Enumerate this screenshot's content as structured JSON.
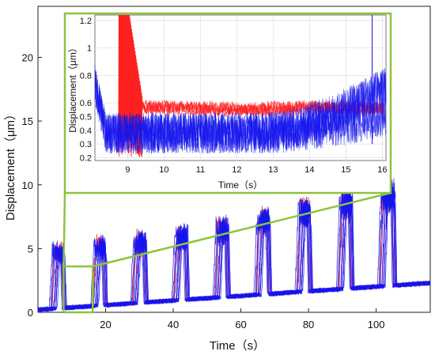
{
  "chart_data": [
    {
      "type": "line",
      "name": "main",
      "xlabel": "Time（s）",
      "ylabel": "Displacement（μm）",
      "xlim": [
        0,
        116
      ],
      "ylim": [
        0,
        24
      ],
      "xticks": [
        20,
        40,
        60,
        80,
        100
      ],
      "yticks": [
        0,
        5,
        10,
        15,
        20
      ],
      "grid": false,
      "pulses": [
        {
          "start": 4.5,
          "end": 7.8,
          "peak": 4.8
        },
        {
          "start": 16.8,
          "end": 20.0,
          "peak": 5.2
        },
        {
          "start": 28.5,
          "end": 32.0,
          "peak": 5.6
        },
        {
          "start": 40.7,
          "end": 44.2,
          "peak": 6.0
        },
        {
          "start": 52.9,
          "end": 56.3,
          "peak": 6.6
        },
        {
          "start": 65.0,
          "end": 68.5,
          "peak": 7.3
        },
        {
          "start": 77.2,
          "end": 80.6,
          "peak": 8.0
        },
        {
          "start": 89.4,
          "end": 92.9,
          "peak": 8.8
        },
        {
          "start": 101.6,
          "end": 105.5,
          "peak": 9.4
        }
      ],
      "baseline_start": 0.2,
      "baseline_end": 2.3,
      "series_colors": [
        "#ff2020",
        "#1515ee"
      ]
    },
    {
      "type": "line",
      "name": "inset",
      "xlabel": "Time（s）",
      "ylabel": "Displacement（μm）",
      "xlim": [
        8.1,
        16.1
      ],
      "ylim": [
        0.18,
        1.24
      ],
      "xticks": [
        9,
        10,
        11,
        12,
        13,
        14,
        15,
        16
      ],
      "yticks": [
        0.2,
        0.3,
        0.4,
        0.5,
        0.6,
        0.8,
        1,
        1.2
      ],
      "grid": true,
      "red_level": 0.56,
      "blue_level": 0.38,
      "blue_rise_end": 0.72,
      "series_colors": [
        "#ff2020",
        "#1515ee"
      ]
    }
  ],
  "colors": {
    "highlight": "#8cc43c",
    "red": "#ff2020",
    "blue": "#1515ee"
  }
}
